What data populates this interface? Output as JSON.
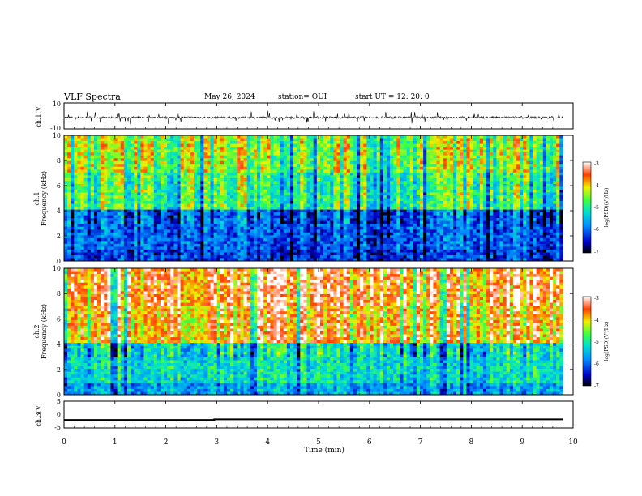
{
  "header": {
    "title": "VLF Spectra",
    "date": "May 26, 2024",
    "station": "station= OUI",
    "start": "start  UT  =    12: 20: 0"
  },
  "colorbar": {
    "label": "log(PSD)(V²/Hz)",
    "ticks": [
      "-3",
      "-4",
      "-5",
      "-6",
      "-7"
    ]
  },
  "chart_data": [
    {
      "type": "line",
      "name": "ch1-waveform",
      "ylabel": "ch.1(V)",
      "ylim": [
        -10,
        10
      ],
      "yticks": [
        "10",
        "-10"
      ],
      "xlim": [
        0,
        10
      ],
      "baseline": 0
    },
    {
      "type": "heatmap",
      "name": "ch1-spectrogram",
      "ylabel": "ch.1\nFrequency (kHz)",
      "ylim": [
        0,
        10
      ],
      "yticks": [
        "10",
        "8",
        "6",
        "4",
        "2",
        "0"
      ],
      "xlim": [
        0,
        9.8
      ],
      "color_range": [
        -7,
        -3
      ],
      "typical_log_psd": {
        "0-1 kHz": -6.2,
        "1-4 kHz": -6.0,
        "4-7 kHz": -4.8,
        "7-10 kHz": -4.4
      }
    },
    {
      "type": "heatmap",
      "name": "ch2-spectrogram",
      "ylabel": "ch.2\nFrequency (kHz)",
      "ylim": [
        0,
        10
      ],
      "yticks": [
        "10",
        "8",
        "6",
        "4",
        "2",
        "0"
      ],
      "xlim": [
        0,
        9.8
      ],
      "color_range": [
        -7,
        -3
      ],
      "typical_log_psd": {
        "0-1 kHz": -5.6,
        "1-4 kHz": -5.2,
        "4-7 kHz": -3.8,
        "7-10 kHz": -3.5
      }
    },
    {
      "type": "line",
      "name": "ch3-level",
      "ylabel": "ch.3(V)",
      "ylim": [
        -5,
        5
      ],
      "yticks": [
        "5",
        "0",
        "-5"
      ],
      "series": [
        {
          "x": [
            0,
            2.95,
            2.95,
            9.8
          ],
          "y": [
            -2,
            -2,
            -1.8,
            -1.8
          ]
        }
      ]
    }
  ],
  "xaxis": {
    "label": "Time (min)",
    "ticks": [
      "0",
      "1",
      "2",
      "3",
      "4",
      "5",
      "6",
      "7",
      "8",
      "9",
      "10"
    ],
    "range": [
      0,
      10
    ]
  }
}
